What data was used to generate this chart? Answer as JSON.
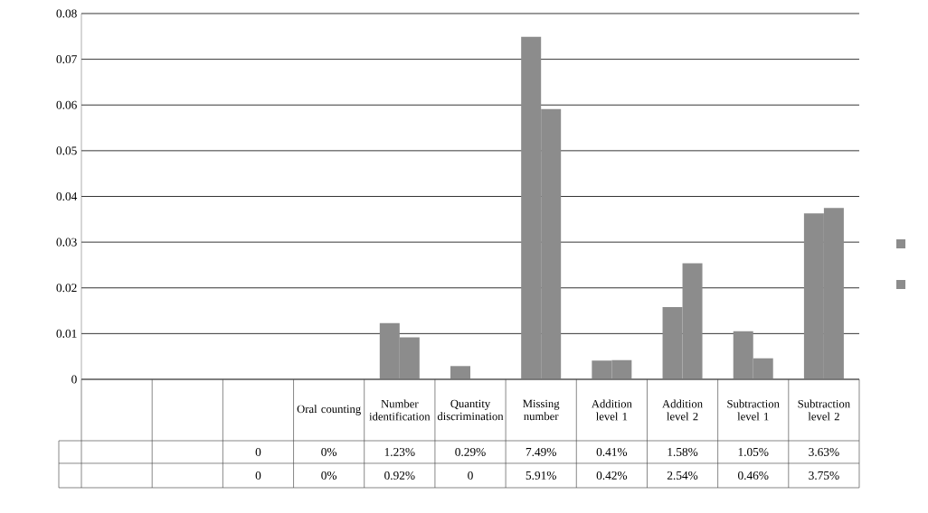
{
  "chart_data": {
    "type": "bar",
    "categories": [
      null,
      null,
      null,
      "Oral counting",
      "Number identification",
      "Quantity discrimination",
      "Missing number",
      "Addition level 1",
      "Addition level 2",
      "Subtraction level 1",
      "Subtraction level 2"
    ],
    "series": [
      {
        "color": "#8c8c8c",
        "values": [
          null,
          null,
          0,
          0,
          0.0123,
          0.0029,
          0.0749,
          0.0041,
          0.0158,
          0.0105,
          0.0363
        ],
        "value_labels": [
          null,
          null,
          "0",
          "0%",
          "1.23%",
          "0.29%",
          "7.49%",
          "0.41%",
          "1.58%",
          "1.05%",
          "3.63%"
        ]
      },
      {
        "color": "#8c8c8c",
        "values": [
          null,
          null,
          0,
          0,
          0.0092,
          0,
          0.0591,
          0.0042,
          0.0254,
          0.0046,
          0.0375
        ],
        "value_labels": [
          null,
          null,
          "0",
          "0%",
          "0.92%",
          "0",
          "5.91%",
          "0.42%",
          "2.54%",
          "0.46%",
          "3.75%"
        ]
      }
    ],
    "ylim": [
      0,
      0.08
    ],
    "yticks": [
      0,
      0.01,
      0.02,
      0.03,
      0.04,
      0.05,
      0.06,
      0.07,
      0.08
    ],
    "grid": "y"
  }
}
